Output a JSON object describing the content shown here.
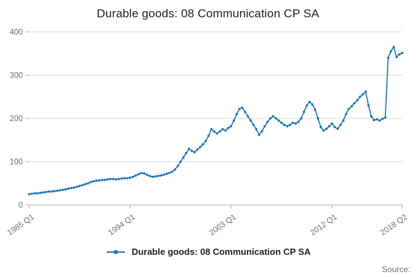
{
  "title": "Durable goods: 08 Communication CP SA",
  "legend": {
    "label": "Durable goods: 08 Communication CP SA"
  },
  "source_label": "Source:",
  "colors": {
    "line": "#1f77b4",
    "grid": "#d9d9d9",
    "axis": "#b0b0b0",
    "muted": "#707071",
    "text": "#222222"
  },
  "chart_data": {
    "type": "line",
    "title": "Durable goods: 08 Communication CP SA",
    "xlabel": "",
    "ylabel": "",
    "x_unit": "quarter",
    "x_start": "1985 Q1",
    "x_end": "2018 Q2",
    "x_tick_labels": [
      "1985 Q1",
      "1994 Q1",
      "2003 Q1",
      "2012 Q1",
      "2018 Q2"
    ],
    "x_tick_positions": [
      0,
      36,
      72,
      108,
      133
    ],
    "y_ticks": [
      0,
      100,
      200,
      300,
      400
    ],
    "ylim": [
      0,
      400
    ],
    "grid": "horizontal",
    "marker": "circle",
    "legend_position": "bottom",
    "series": [
      {
        "name": "Durable goods: 08 Communication CP SA",
        "values": [
          25,
          26,
          27,
          27,
          28,
          29,
          30,
          31,
          31,
          32,
          33,
          34,
          35,
          36,
          38,
          39,
          40,
          42,
          44,
          46,
          48,
          50,
          53,
          55,
          56,
          57,
          58,
          58,
          59,
          60,
          60,
          59,
          60,
          61,
          62,
          62,
          63,
          65,
          68,
          71,
          74,
          73,
          70,
          67,
          65,
          66,
          67,
          68,
          70,
          72,
          74,
          77,
          82,
          90,
          100,
          110,
          120,
          130,
          125,
          122,
          128,
          134,
          140,
          148,
          160,
          175,
          170,
          165,
          170,
          175,
          172,
          178,
          182,
          195,
          210,
          222,
          225,
          215,
          205,
          195,
          185,
          175,
          162,
          170,
          182,
          192,
          200,
          205,
          200,
          195,
          190,
          185,
          182,
          185,
          190,
          188,
          192,
          200,
          215,
          230,
          238,
          232,
          220,
          200,
          180,
          172,
          176,
          182,
          188,
          180,
          176,
          185,
          195,
          210,
          222,
          228,
          235,
          242,
          250,
          256,
          262,
          230,
          205,
          196,
          198,
          195,
          199,
          202,
          340,
          355,
          365,
          342,
          348,
          351
        ]
      }
    ]
  }
}
